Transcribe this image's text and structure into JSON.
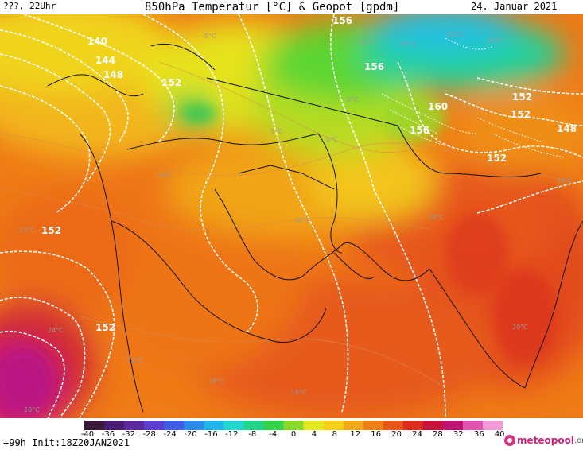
{
  "header": {
    "left": "???, 22Uhr",
    "title": "850hPa Temperatur [°C] & Geopot [gpdm]",
    "date": "24. Januar 2021"
  },
  "footer": {
    "run": "+99h Init:18Z20JAN2021",
    "brand_main": "meteopool",
    "brand_suffix": ".org"
  },
  "legend": {
    "labels": [
      "-40",
      "-36",
      "-32",
      "-28",
      "-24",
      "-20",
      "-16",
      "-12",
      "-8",
      "-4",
      "0",
      "4",
      "8",
      "12",
      "16",
      "20",
      "24",
      "28",
      "32",
      "36",
      "40"
    ],
    "colors": [
      "#3b1a3b",
      "#4a1e74",
      "#5a2a9e",
      "#5a3fd0",
      "#3f5ee8",
      "#2c8ae8",
      "#1fb4ea",
      "#22d6d0",
      "#22d48a",
      "#34d24a",
      "#8ad82a",
      "#e2e81e",
      "#f4d018",
      "#f3a81a",
      "#ef8016",
      "#e9561a",
      "#dd2c1e",
      "#c8143a",
      "#c01475",
      "#df52b0",
      "#f29ad6"
    ]
  },
  "geopotential_labels": [
    "140",
    "144",
    "148",
    "152",
    "156",
    "160",
    "152",
    "156",
    "156",
    "152",
    "148",
    "152",
    "152",
    "152"
  ],
  "temperature_labels": [
    "-5°C",
    "-10°C",
    "-20°C",
    "-15°C",
    "-25°C",
    "0°C",
    "0°C",
    "5°C",
    "10°C",
    "10°C",
    "10°C",
    "15°C",
    "20°C",
    "24°C",
    "20°C",
    "16°C",
    "16°C",
    "20°C",
    "10°C"
  ]
}
